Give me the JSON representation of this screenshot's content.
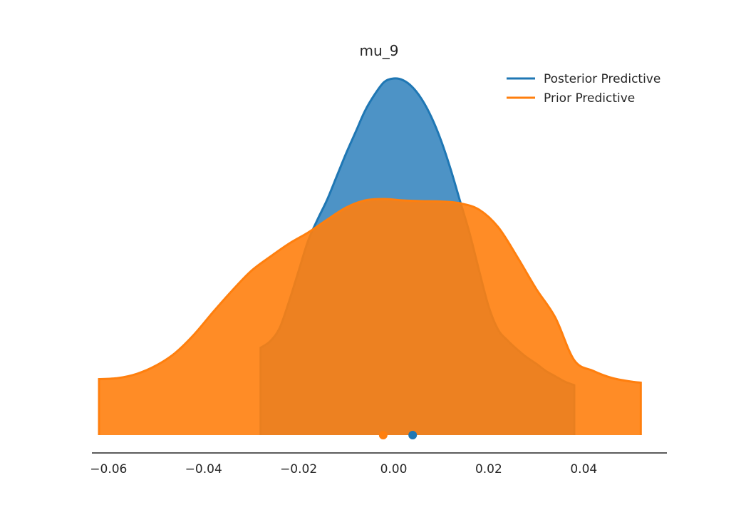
{
  "chart_data": {
    "type": "area",
    "title": "mu_9",
    "xlabel": "",
    "ylabel": "",
    "xlim": [
      -0.0635,
      0.0575
    ],
    "ylim": [
      0,
      1.0
    ],
    "grid": false,
    "legend_position": "top-right",
    "x_ticks": [
      -0.06,
      -0.04,
      -0.02,
      0.0,
      0.02,
      0.04
    ],
    "x_tick_labels": [
      "−0.06",
      "−0.04",
      "−0.02",
      "0.00",
      "0.02",
      "0.04"
    ],
    "series": [
      {
        "name": "Posterior Predictive",
        "color": "#1f77b4",
        "fill_color": "#3a87c0",
        "mean_marker": 0.004,
        "x": [
          -0.028,
          -0.026,
          -0.024,
          -0.022,
          -0.02,
          -0.018,
          -0.016,
          -0.014,
          -0.012,
          -0.01,
          -0.008,
          -0.006,
          -0.004,
          -0.002,
          0.0,
          0.002,
          0.004,
          0.006,
          0.008,
          0.01,
          0.012,
          0.014,
          0.016,
          0.018,
          0.02,
          0.022,
          0.024,
          0.026,
          0.028,
          0.03,
          0.032,
          0.034,
          0.036,
          0.038
        ],
        "y": [
          0.245,
          0.263,
          0.3,
          0.375,
          0.46,
          0.545,
          0.605,
          0.66,
          0.725,
          0.79,
          0.85,
          0.91,
          0.955,
          0.99,
          1.0,
          0.995,
          0.975,
          0.94,
          0.89,
          0.825,
          0.745,
          0.655,
          0.565,
          0.46,
          0.36,
          0.295,
          0.265,
          0.24,
          0.218,
          0.2,
          0.18,
          0.165,
          0.15,
          0.14
        ]
      },
      {
        "name": "Prior Predictive",
        "color": "#ff7f0e",
        "fill_color": "#ff7f0e",
        "mean_marker": -0.0022,
        "x": [
          -0.062,
          -0.058,
          -0.054,
          -0.05,
          -0.046,
          -0.042,
          -0.038,
          -0.034,
          -0.03,
          -0.026,
          -0.022,
          -0.018,
          -0.014,
          -0.01,
          -0.006,
          -0.002,
          0.002,
          0.006,
          0.01,
          0.014,
          0.018,
          0.022,
          0.026,
          0.03,
          0.034,
          0.038,
          0.042,
          0.046,
          0.05,
          0.052
        ],
        "y": [
          0.157,
          0.16,
          0.172,
          0.195,
          0.23,
          0.282,
          0.345,
          0.405,
          0.46,
          0.5,
          0.537,
          0.568,
          0.604,
          0.638,
          0.658,
          0.662,
          0.658,
          0.656,
          0.655,
          0.65,
          0.632,
          0.583,
          0.5,
          0.41,
          0.33,
          0.21,
          0.18,
          0.16,
          0.15,
          0.147
        ]
      }
    ]
  }
}
